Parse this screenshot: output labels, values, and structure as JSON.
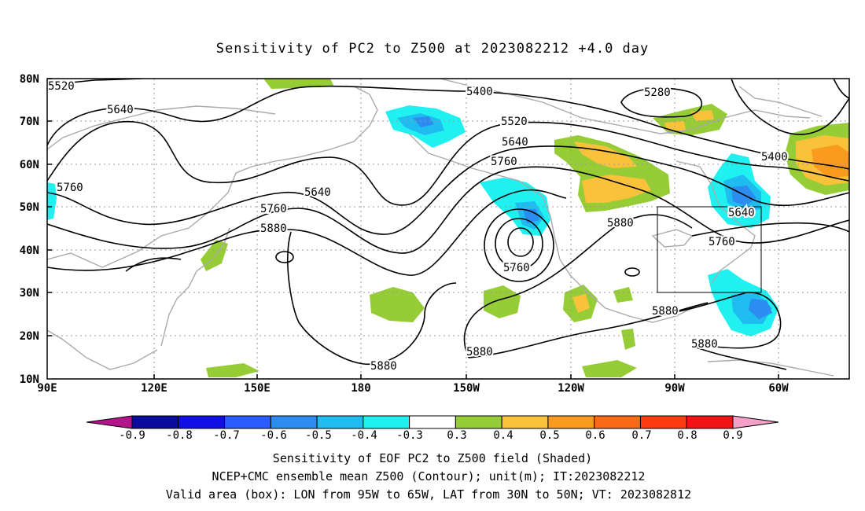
{
  "title": "Sensitivity of PC2 to Z500 at 2023082212 +4.0 day",
  "lat_labels": [
    "80N",
    "70N",
    "60N",
    "50N",
    "40N",
    "30N",
    "20N",
    "10N"
  ],
  "lon_labels": [
    "90E",
    "120E",
    "150E",
    "180",
    "150W",
    "120W",
    "90W",
    "60W"
  ],
  "contour_labels": [
    {
      "text": "5520",
      "id": "5520-a"
    },
    {
      "text": "5640",
      "id": "5640-a"
    },
    {
      "text": "5400",
      "id": "5400-a"
    },
    {
      "text": "5280",
      "id": "5280-a"
    },
    {
      "text": "5520",
      "id": "5520-b"
    },
    {
      "text": "5640",
      "id": "5640-b"
    },
    {
      "text": "5760",
      "id": "5760-a"
    },
    {
      "text": "5400",
      "id": "5400-b"
    },
    {
      "text": "5760",
      "id": "5760-b"
    },
    {
      "text": "5640",
      "id": "5640-c"
    },
    {
      "text": "5760",
      "id": "5760-c"
    },
    {
      "text": "5880",
      "id": "5880-a"
    },
    {
      "text": "5640",
      "id": "5640-d"
    },
    {
      "text": "5760",
      "id": "5760-d"
    },
    {
      "text": "5880",
      "id": "5880-b"
    },
    {
      "text": "5760",
      "id": "5760-e"
    },
    {
      "text": "5880",
      "id": "5880-c"
    },
    {
      "text": "5880",
      "id": "5880-d"
    },
    {
      "text": "5880",
      "id": "5880-e"
    },
    {
      "text": "5880",
      "id": "5880-f"
    }
  ],
  "colorbar": {
    "labels": [
      "-0.9",
      "-0.8",
      "-0.7",
      "-0.6",
      "-0.5",
      "-0.4",
      "-0.3",
      "0.3",
      "0.4",
      "0.5",
      "0.6",
      "0.7",
      "0.8",
      "0.9"
    ],
    "colors": [
      "#0a0a9c",
      "#1010e6",
      "#2a5cff",
      "#2c8cf0",
      "#1fbcf0",
      "#20f0f0",
      "#ffffff",
      "#96cd37",
      "#fac23a",
      "#fa9a1e",
      "#fa6a14",
      "#fa3c0f",
      "#f01414"
    ],
    "left_arrow_color": "#b4148c",
    "right_arrow_color": "#f4a0c8"
  },
  "captions": {
    "line1": "Sensitivity of EOF PC2 to Z500 field (Shaded)",
    "line2": "NCEP+CMC ensemble mean Z500 (Contour); unit(m); IT:2023082212",
    "line3": "Valid area (box): LON from 95W to 65W, LAT from 30N to 50N; VT: 2023082812"
  },
  "shading_colors": {
    "cyan": "#20f0f0",
    "lightblue": "#1fbcf0",
    "blue": "#2c8cf0",
    "green": "#96cd37",
    "yellow": "#fac23a",
    "orange": "#fa9a1e"
  }
}
